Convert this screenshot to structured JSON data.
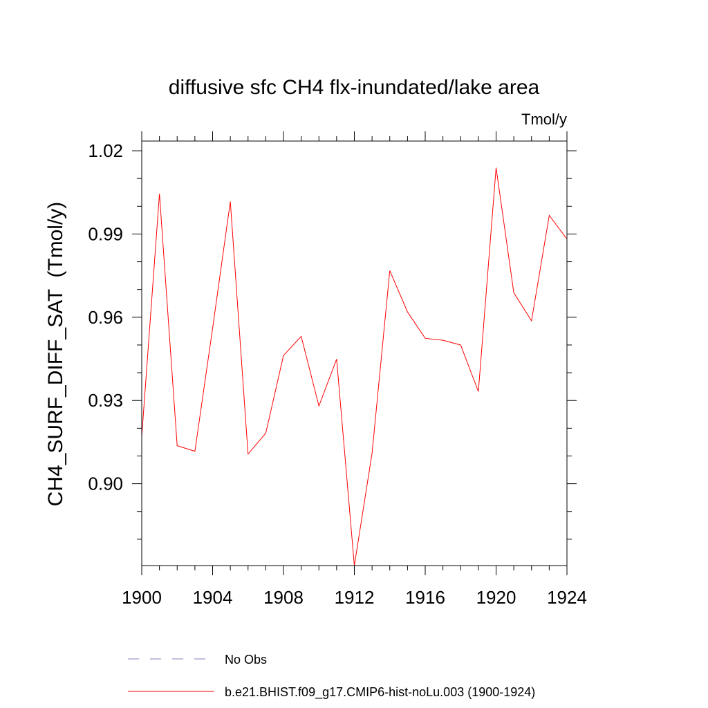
{
  "chart_data": {
    "type": "line",
    "title": "diffusive sfc CH4 flx-inundated/lake area",
    "units_label": "Tmol/y",
    "ylabel": "CH4_SURF_DIFF_SAT  (Tmol/y)",
    "xlabel": "",
    "xlim": [
      1900,
      1924
    ],
    "ylim": [
      0.8705,
      1.0235
    ],
    "x_ticks": [
      1900,
      1904,
      1908,
      1912,
      1916,
      1920,
      1924
    ],
    "x_tick_labels": [
      "1900",
      "1904",
      "1908",
      "1912",
      "1916",
      "1920",
      "1924"
    ],
    "x_minor_step": 1,
    "y_ticks": [
      0.9,
      0.93,
      0.96,
      0.99,
      1.02
    ],
    "y_tick_labels": [
      "0.90",
      "0.93",
      "0.96",
      "0.99",
      "1.02"
    ],
    "y_minor_step": 0.01,
    "grid": false,
    "legend_position": "bottom",
    "legend": [
      {
        "label": "No Obs",
        "color": "#8080c0",
        "dash": "dashed"
      },
      {
        "label": "b.e21.BHIST.f09_g17.CMIP6-hist-noLu.003 (1900-1924)",
        "color": "#ff0000",
        "dash": "solid"
      }
    ],
    "series": [
      {
        "name": "b.e21.BHIST.f09_g17.CMIP6-hist-noLu.003 (1900-1924)",
        "color": "#ff0000",
        "x": [
          1900,
          1901,
          1902,
          1903,
          1904,
          1905,
          1906,
          1907,
          1908,
          1909,
          1910,
          1911,
          1912,
          1913,
          1914,
          1915,
          1916,
          1917,
          1918,
          1919,
          1920,
          1921,
          1922,
          1923,
          1924
        ],
        "y": [
          0.917,
          1.0045,
          0.9137,
          0.9117,
          0.956,
          1.0017,
          0.9107,
          0.9182,
          0.9462,
          0.9531,
          0.928,
          0.9449,
          0.8705,
          0.911,
          0.9768,
          0.9619,
          0.9524,
          0.9517,
          0.95,
          0.9332,
          1.0139,
          0.9688,
          0.9587,
          0.9967,
          0.9882
        ]
      }
    ]
  }
}
